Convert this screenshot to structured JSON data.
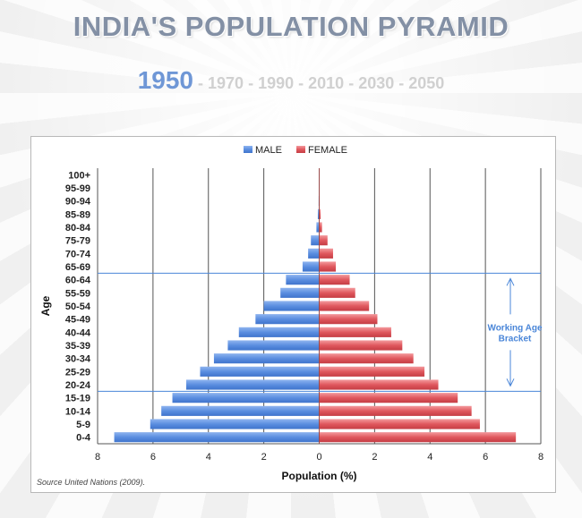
{
  "title": "INDIA'S POPULATION PYRAMID",
  "years": [
    "1950",
    "1970",
    "1990",
    "2010",
    "2030",
    "2050"
  ],
  "active_year": "1950",
  "source": "Source United Nations (2009).",
  "annotation": [
    "Working Age",
    "Bracket"
  ],
  "colors": {
    "male": "#5b8ee0",
    "female": "#e0585e",
    "annotation": "#4a86d8",
    "title": "#8390a5"
  },
  "chart_data": {
    "type": "bar",
    "orientation": "horizontal",
    "legend_position": "top",
    "grid": true,
    "categories": [
      "0-4",
      "5-9",
      "10-14",
      "15-19",
      "20-24",
      "25-29",
      "30-34",
      "35-39",
      "40-44",
      "45-49",
      "50-54",
      "55-59",
      "60-64",
      "65-69",
      "70-74",
      "75-79",
      "80-84",
      "85-89",
      "90-94",
      "95-99",
      "100+"
    ],
    "series": [
      {
        "name": "MALE",
        "values": [
          7.4,
          6.1,
          5.7,
          5.3,
          4.8,
          4.3,
          3.8,
          3.3,
          2.9,
          2.3,
          2.0,
          1.4,
          1.2,
          0.6,
          0.4,
          0.3,
          0.1,
          0.05,
          0.02,
          0.01,
          0.01
        ]
      },
      {
        "name": "FEMALE",
        "values": [
          7.1,
          5.8,
          5.5,
          5.0,
          4.3,
          3.8,
          3.4,
          3.0,
          2.6,
          2.1,
          1.8,
          1.3,
          1.1,
          0.6,
          0.5,
          0.3,
          0.1,
          0.05,
          0.02,
          0.01,
          0.01
        ]
      }
    ],
    "xlabel": "Population (%)",
    "ylabel": "Age",
    "xlim": [
      -8,
      8
    ],
    "x_tick_values": [
      -8,
      -6,
      -4,
      -2,
      0,
      2,
      4,
      6,
      8
    ],
    "x_tick_labels": [
      "8",
      "6",
      "4",
      "2",
      "0",
      "2",
      "4",
      "6",
      "8"
    ],
    "working_age_bracket": [
      "15-19",
      "60-64"
    ]
  }
}
